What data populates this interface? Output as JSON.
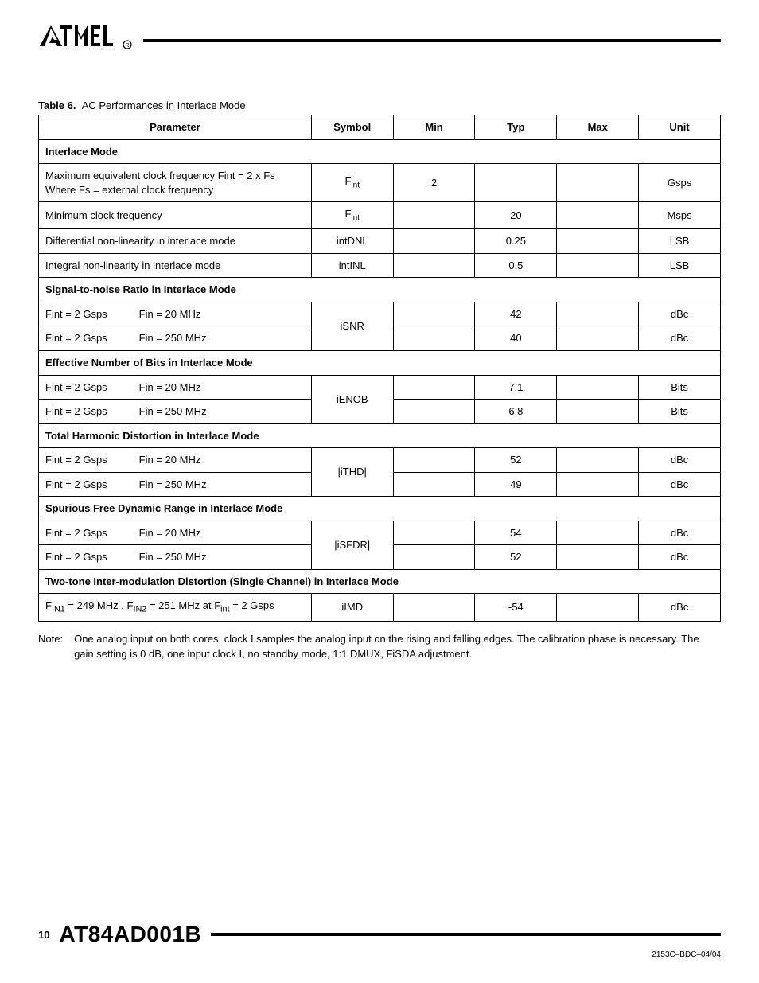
{
  "logo_name": "Atmel",
  "caption": {
    "prefix": "Table 6.",
    "text": "AC Performances in Interlace Mode"
  },
  "headers": {
    "parameter": "Parameter",
    "symbol": "Symbol",
    "min": "Min",
    "typ": "Typ",
    "max": "Max",
    "unit": "Unit"
  },
  "rows": [
    {
      "kind": "section",
      "p": "Interlace Mode"
    },
    {
      "kind": "data",
      "p": "Maximum equivalent clock frequency Fint = 2 x Fs\nWhere Fs = external clock frequency",
      "sym": "F_int",
      "min": "2",
      "typ": "",
      "max": "",
      "unit": "Gsps"
    },
    {
      "kind": "data",
      "p": "Minimum clock frequency",
      "sym": "F_int",
      "min": "",
      "typ": "20",
      "max": "",
      "unit": "Msps"
    },
    {
      "kind": "data",
      "p": "Differential non-linearity in interlace mode",
      "sym": "intDNL",
      "min": "",
      "typ": "0.25",
      "max": "",
      "unit": "LSB"
    },
    {
      "kind": "data",
      "p": "Integral non-linearity in interlace mode",
      "sym": "intINL",
      "min": "",
      "typ": "0.5",
      "max": "",
      "unit": "LSB"
    },
    {
      "kind": "section",
      "p": "Signal-to-noise Ratio in Interlace Mode"
    },
    {
      "kind": "pair",
      "p1a": "Fint = 2 Gsps",
      "p1b": "Fin = 20 MHz",
      "p2a": "Fint = 2 Gsps",
      "p2b": "Fin = 250 MHz",
      "sym": "iSNR",
      "r1": {
        "min": "",
        "typ": "42",
        "max": "",
        "unit": "dBc"
      },
      "r2": {
        "min": "",
        "typ": "40",
        "max": "",
        "unit": "dBc"
      }
    },
    {
      "kind": "section",
      "p": "Effective Number of Bits in Interlace Mode"
    },
    {
      "kind": "pair",
      "p1a": "Fint = 2 Gsps",
      "p1b": "Fin = 20 MHz",
      "p2a": "Fint = 2 Gsps",
      "p2b": "Fin = 250 MHz",
      "sym": "iENOB",
      "r1": {
        "min": "",
        "typ": "7.1",
        "max": "",
        "unit": "Bits"
      },
      "r2": {
        "min": "",
        "typ": "6.8",
        "max": "",
        "unit": "Bits"
      }
    },
    {
      "kind": "section",
      "p": "Total Harmonic Distortion in Interlace Mode"
    },
    {
      "kind": "pair",
      "p1a": "Fint = 2 Gsps",
      "p1b": "Fin = 20 MHz",
      "p2a": "Fint = 2 Gsps",
      "p2b": "Fin = 250 MHz",
      "sym": "|iTHD|",
      "r1": {
        "min": "",
        "typ": "52",
        "max": "",
        "unit": "dBc"
      },
      "r2": {
        "min": "",
        "typ": "49",
        "max": "",
        "unit": "dBc"
      }
    },
    {
      "kind": "section",
      "p": "Spurious Free Dynamic Range in Interlace Mode"
    },
    {
      "kind": "pair",
      "p1a": "Fint = 2 Gsps",
      "p1b": "Fin = 20 MHz",
      "p2a": "Fint = 2 Gsps",
      "p2b": "Fin = 250 MHz",
      "sym": "|iSFDR|",
      "r1": {
        "min": "",
        "typ": "54",
        "max": "",
        "unit": "dBc"
      },
      "r2": {
        "min": "",
        "typ": "52",
        "max": "",
        "unit": "dBc"
      }
    },
    {
      "kind": "section",
      "p": "Two-tone Inter-modulation Distortion (Single Channel) in Interlace Mode"
    },
    {
      "kind": "data",
      "p_html": "F<sub>IN1</sub> = 249 MHz , F<sub>IN2</sub> = 251 MHz at F<sub>int</sub> = 2 Gsps",
      "sym": "iIMD",
      "min": "",
      "typ": "-54",
      "max": "",
      "unit": "dBc"
    }
  ],
  "note": {
    "label": "Note:",
    "text": "One analog input on both cores, clock I samples the analog input on the rising and falling edges. The calibration phase is necessary. The gain setting is 0 dB, one input clock I, no standby mode, 1:1 DMUX, FiSDA adjustment."
  },
  "footer": {
    "page": "10",
    "doc": "AT84AD001B",
    "rev": "2153C–BDC–04/04"
  },
  "colors": {
    "rule": "#000000",
    "text": "#000000",
    "bg": "#ffffff"
  }
}
